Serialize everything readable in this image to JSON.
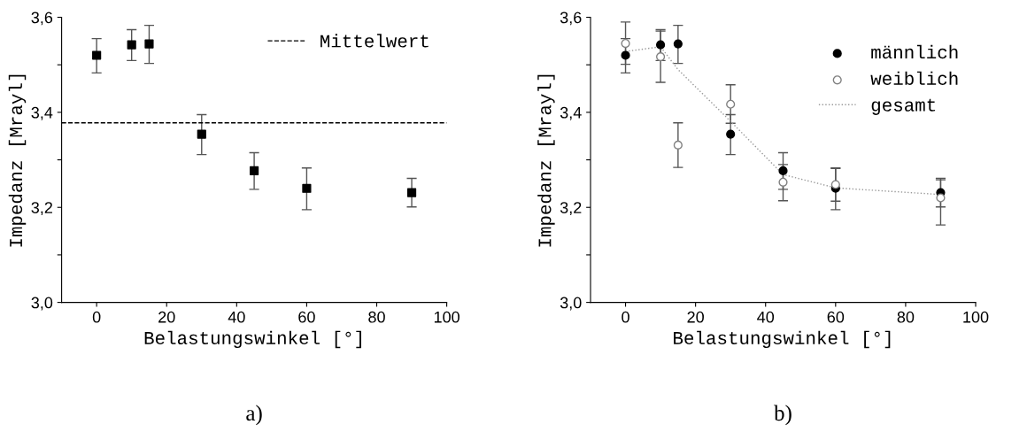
{
  "chart_data": [
    {
      "type": "scatter",
      "xlabel": "Belastungswinkel [°]",
      "ylabel": "Impedanz [Mrayl]",
      "x": [
        0,
        10,
        15,
        30,
        45,
        60,
        90
      ],
      "series": [
        {
          "color": "#000000",
          "marker": "square",
          "values": [
            3.52,
            3.542,
            3.544,
            3.354,
            3.277,
            3.24,
            3.231
          ],
          "errors": [
            [
              3.483,
              3.555
            ],
            [
              3.509,
              3.574
            ],
            [
              3.503,
              3.583
            ],
            [
              3.311,
              3.395
            ],
            [
              3.238,
              3.315
            ],
            [
              3.195,
              3.283
            ],
            [
              3.201,
              3.261
            ]
          ]
        }
      ],
      "ref_lines": [
        {
          "axis": "y",
          "value": 3.378,
          "label": "Mittelwert",
          "color": "#000000",
          "line_style": "dashed"
        }
      ],
      "xlim": [
        -10,
        100
      ],
      "ylim": [
        3.0,
        3.6
      ],
      "xticks": [
        0,
        20,
        40,
        60,
        80,
        100
      ],
      "yticks": [
        {
          "value": 3.0,
          "label": "3,0"
        },
        {
          "value": 3.1,
          "label": null
        },
        {
          "value": 3.2,
          "label": "3,2"
        },
        {
          "value": 3.3,
          "label": null
        },
        {
          "value": 3.4,
          "label": "3,4"
        },
        {
          "value": 3.5,
          "label": null
        },
        {
          "value": 3.6,
          "label": "3,6"
        }
      ],
      "legend": "top right",
      "grid": false,
      "annotations": [
        "a)"
      ]
    },
    {
      "type": "scatter",
      "xlabel": "Belastungswinkel [°]",
      "ylabel": "Impedanz [Mrayl]",
      "x": [
        0,
        10,
        15,
        30,
        45,
        60,
        90
      ],
      "series": [
        {
          "name": "männlich",
          "color": "#000000",
          "marker": "circle",
          "values": [
            3.52,
            3.542,
            3.544,
            3.354,
            3.277,
            3.24,
            3.231
          ],
          "errors": [
            [
              3.483,
              3.555
            ],
            [
              3.509,
              3.574
            ],
            [
              3.503,
              3.583
            ],
            [
              3.311,
              3.395
            ],
            [
              3.238,
              3.315
            ],
            [
              3.195,
              3.283
            ],
            [
              3.201,
              3.261
            ]
          ]
        },
        {
          "name": "weiblich",
          "color": "#808080",
          "marker": "circle",
          "values": [
            3.545,
            3.517,
            3.331,
            3.417,
            3.253,
            3.248,
            3.22
          ],
          "errors": [
            [
              3.501,
              3.59
            ],
            [
              3.463,
              3.571
            ],
            [
              3.284,
              3.378
            ],
            [
              3.377,
              3.458
            ],
            [
              3.214,
              3.29
            ],
            [
              3.213,
              3.282
            ],
            [
              3.163,
              3.258
            ]
          ]
        },
        {
          "name": "gesamt",
          "type": "line",
          "color": "#999999",
          "line_style": "dotted",
          "marker": "none",
          "values": [
            3.528,
            3.538,
            3.49,
            3.381,
            3.269,
            3.241,
            3.227
          ]
        }
      ],
      "xlim": [
        -10,
        100
      ],
      "ylim": [
        3.0,
        3.6
      ],
      "xticks": [
        0,
        20,
        40,
        60,
        80,
        100
      ],
      "yticks": [
        {
          "value": 3.0,
          "label": "3,0"
        },
        {
          "value": 3.1,
          "label": null
        },
        {
          "value": 3.2,
          "label": "3,2"
        },
        {
          "value": 3.3,
          "label": null
        },
        {
          "value": 3.4,
          "label": "3,4"
        },
        {
          "value": 3.5,
          "label": null
        },
        {
          "value": 3.6,
          "label": "3,6"
        }
      ],
      "legend": "right",
      "grid": false,
      "annotations": [
        "b)"
      ]
    }
  ]
}
